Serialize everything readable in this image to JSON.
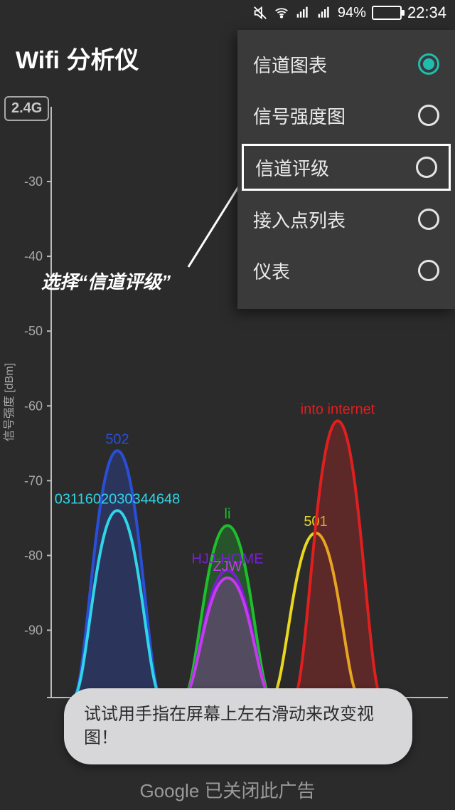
{
  "status": {
    "battery_pct": "94%",
    "battery_fill": 94,
    "time": "22:34"
  },
  "app": {
    "title": "Wifi 分析仪"
  },
  "band_badge": "2.4G",
  "menu": {
    "items": [
      {
        "label": "信道图表",
        "selected": true
      },
      {
        "label": "信号强度图",
        "selected": false
      },
      {
        "label": "信道评级",
        "selected": false,
        "highlight": true
      },
      {
        "label": "接入点列表",
        "selected": false
      },
      {
        "label": "仪表",
        "selected": false
      }
    ]
  },
  "annotation": {
    "text": "选择“信道评级”"
  },
  "chart": {
    "type": "wifi-channel-parabolas",
    "background": "#2b2b2b",
    "axis_color": "#bbbbbb",
    "grid_color": "#555555",
    "label_color": "#a8a8a8",
    "y_title": "信号强度 [dBm]",
    "y_min": -99,
    "y_max": -20,
    "y_ticks": [
      -30,
      -40,
      -50,
      -60,
      -70,
      -80,
      -90,
      -99
    ],
    "x_min": -2,
    "x_max": 16,
    "x_ticks": [
      1,
      2,
      3,
      4,
      5,
      6,
      7,
      8,
      9,
      10,
      11,
      12,
      13,
      14
    ],
    "channel_width": 4,
    "signals": [
      {
        "ssid": "502",
        "channel": 1,
        "peak_dbm": -66,
        "color": "#2a4fd6"
      },
      {
        "ssid": "0311602030344648",
        "channel": 1,
        "peak_dbm": -74,
        "color": "#2fd6e8",
        "fill_opacity": 0
      },
      {
        "ssid": "li",
        "channel": 6,
        "peak_dbm": -76,
        "color": "#1fbe2c"
      },
      {
        "ssid": "HJJ-HOME",
        "channel": 6,
        "peak_dbm": -82,
        "color": "#7a1fd1",
        "fill_opacity": 0
      },
      {
        "ssid": "ZJW",
        "channel": 6,
        "peak_dbm": -83,
        "color": "#c63aed"
      },
      {
        "ssid": "501",
        "channel": 10,
        "peak_dbm": -77,
        "color": "#e9d81f",
        "fill_opacity": 0
      },
      {
        "ssid": "into internet",
        "channel": 11,
        "peak_dbm": -62,
        "color": "#e01f1f"
      }
    ]
  },
  "toast": "试试用手指在屏幕上左右滑动来改变视图！",
  "ad_footer": {
    "brand": "Google",
    "text": " 已关闭此广告"
  }
}
